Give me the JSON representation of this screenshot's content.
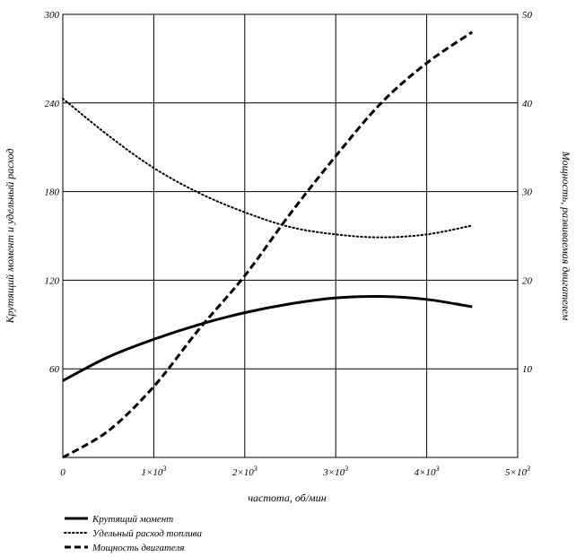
{
  "chart_data": {
    "type": "line",
    "xlabel": "частота, об/мин",
    "ylabel_left": "Крутящий момент и удельный расход",
    "ylabel_right": "Мощность, развиваемая двигателем",
    "x_ticks": [
      "0",
      "1×10",
      "2×10",
      "3×10",
      "4×10",
      "5×10"
    ],
    "x_ticks_exp": [
      "",
      "3",
      "3",
      "3",
      "3",
      "3"
    ],
    "xlim": [
      0,
      5000
    ],
    "y_left_ticks": [
      "60",
      "120",
      "180",
      "240",
      "300"
    ],
    "y_left_lim": [
      0,
      300
    ],
    "y_right_ticks": [
      "10",
      "20",
      "30",
      "40",
      "50"
    ],
    "y_right_lim": [
      0,
      50
    ],
    "grid": true,
    "legend_position": "bottom-left",
    "series": [
      {
        "name": "Крутящий момент",
        "axis": "left",
        "style": "solid",
        "x": [
          0,
          500,
          1000,
          1500,
          2000,
          2500,
          3000,
          3500,
          4000,
          4500
        ],
        "y": [
          52,
          68,
          80,
          90,
          98,
          104,
          108,
          109,
          107,
          102
        ]
      },
      {
        "name": "Удельный расход топлива",
        "axis": "left",
        "style": "dotted",
        "x": [
          0,
          500,
          1000,
          1500,
          2000,
          2500,
          3000,
          3500,
          4000,
          4500
        ],
        "y": [
          243,
          218,
          196,
          179,
          166,
          156,
          151,
          149,
          151,
          157
        ]
      },
      {
        "name": "Мощность двигателя",
        "axis": "right",
        "style": "dashed",
        "x": [
          0,
          500,
          1000,
          1500,
          2000,
          2500,
          3000,
          3500,
          4000,
          4500
        ],
        "y": [
          0,
          3,
          8,
          14.5,
          20.5,
          27.5,
          34,
          40,
          44.5,
          48
        ]
      }
    ]
  }
}
